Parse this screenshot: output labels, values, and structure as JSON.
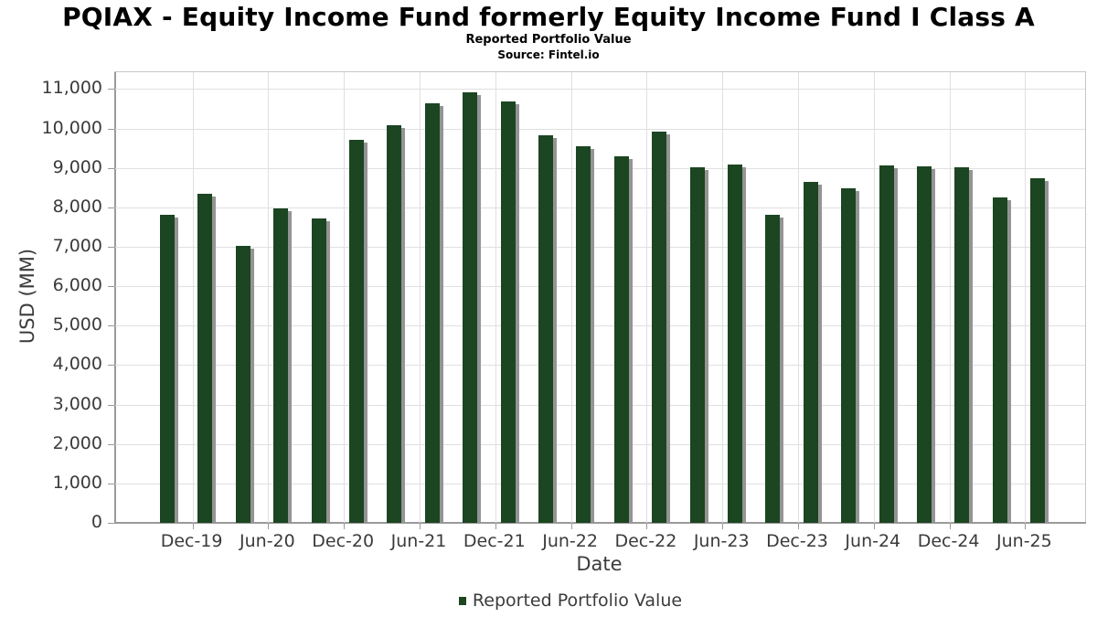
{
  "title": "PQIAX - Equity Income Fund formerly Equity Income Fund I Class A",
  "subtitle": "Reported Portfolio Value",
  "source": "Source: Fintel.io",
  "chart_data": {
    "type": "bar",
    "title": "PQIAX - Equity Income Fund formerly Equity Income Fund I Class A",
    "subtitle": "Reported Portfolio Value",
    "source": "Source: Fintel.io",
    "xlabel": "Date",
    "ylabel": "USD (MM)",
    "ylim": [
      0,
      11000
    ],
    "ytick_step": 1000,
    "grid": true,
    "legend_position": "bottom",
    "x_tick_labels": [
      "Dec-19",
      "Jun-20",
      "Dec-20",
      "Jun-21",
      "Dec-21",
      "Jun-22",
      "Dec-22",
      "Jun-23",
      "Dec-23",
      "Jun-24",
      "Dec-24",
      "Jun-25"
    ],
    "colors": {
      "bar": "#1c4522",
      "shadow": "#949494",
      "grid": "#e0e0e0",
      "spine": "#9a9a9a",
      "text": "#3b3b3b"
    },
    "series": [
      {
        "name": "Reported Portfolio Value",
        "points": [
          {
            "date": "Sep-19",
            "value": 7810
          },
          {
            "date": "Dec-19",
            "value": 8340
          },
          {
            "date": "Mar-20",
            "value": 7030
          },
          {
            "date": "Jun-20",
            "value": 7980
          },
          {
            "date": "Sep-20",
            "value": 7730
          },
          {
            "date": "Dec-20",
            "value": 9720
          },
          {
            "date": "Mar-21",
            "value": 10080
          },
          {
            "date": "Jun-21",
            "value": 10650
          },
          {
            "date": "Sep-21",
            "value": 10910
          },
          {
            "date": "Dec-21",
            "value": 10690
          },
          {
            "date": "Mar-22",
            "value": 9840
          },
          {
            "date": "Jun-22",
            "value": 9540
          },
          {
            "date": "Sep-22",
            "value": 9290
          },
          {
            "date": "Dec-22",
            "value": 9920
          },
          {
            "date": "Mar-23",
            "value": 9020
          },
          {
            "date": "Jun-23",
            "value": 9090
          },
          {
            "date": "Sep-23",
            "value": 7810
          },
          {
            "date": "Dec-23",
            "value": 8650
          },
          {
            "date": "Mar-24",
            "value": 8480
          },
          {
            "date": "Jun-24",
            "value": 9060
          },
          {
            "date": "Sep-24",
            "value": 9030
          },
          {
            "date": "Dec-24",
            "value": 9020
          },
          {
            "date": "Mar-25",
            "value": 8250
          },
          {
            "date": "Jun-25",
            "value": 8750
          }
        ]
      }
    ]
  },
  "legend": {
    "label": "Reported Portfolio Value"
  }
}
